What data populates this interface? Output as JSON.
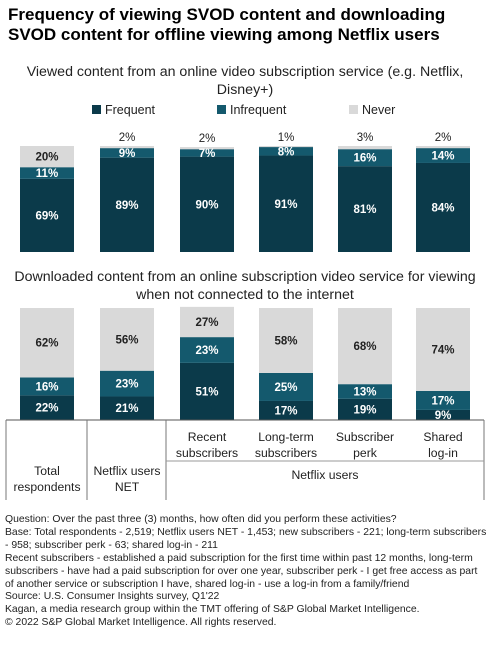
{
  "title": "Frequency of viewing SVOD content and downloading SVOD content for offline viewing among Netflix users",
  "colors": {
    "frequent": "#0b3a4a",
    "infrequent": "#14596d",
    "never": "#d9d9d9"
  },
  "legend": [
    {
      "label": "Frequent",
      "color": "#0b3a4a"
    },
    {
      "label": "Infrequent",
      "color": "#14596d"
    },
    {
      "label": "Never",
      "color": "#d9d9d9"
    }
  ],
  "categories": [
    {
      "lines": [
        "",
        "Total",
        "respondents"
      ]
    },
    {
      "lines": [
        "",
        "Netflix users",
        "NET"
      ]
    },
    {
      "lines": [
        "Recent",
        "subscribers",
        ""
      ]
    },
    {
      "lines": [
        "Long-term",
        "subscribers",
        ""
      ]
    },
    {
      "lines": [
        "Subscriber",
        "perk",
        ""
      ]
    },
    {
      "lines": [
        "Shared",
        "log-in",
        ""
      ]
    }
  ],
  "group_label": "Netflix users",
  "chart_data": [
    {
      "type": "bar",
      "stacked": true,
      "title": "Viewed content from an online video subscription service (e.g. Netflix, Disney+)",
      "categories": [
        "Total respondents",
        "Netflix users NET",
        "Recent subscribers",
        "Long-term subscribers",
        "Subscriber perk",
        "Shared log-in"
      ],
      "series": [
        {
          "name": "Frequent",
          "values": [
            69,
            89,
            90,
            91,
            81,
            84
          ]
        },
        {
          "name": "Infrequent",
          "values": [
            11,
            9,
            7,
            8,
            16,
            14
          ]
        },
        {
          "name": "Never",
          "values": [
            20,
            2,
            2,
            1,
            3,
            2
          ]
        }
      ],
      "labels": {
        "Frequent": [
          "69%",
          "89%",
          "90%",
          "91%",
          "81%",
          "84%"
        ],
        "Infrequent": [
          "11%",
          "9%",
          "7%",
          "8%",
          "16%",
          "14%"
        ],
        "Never": [
          "20%",
          "2%",
          "2%",
          "1%",
          "3%",
          "2%"
        ]
      },
      "legend_position": "top",
      "ylim": [
        0,
        100
      ]
    },
    {
      "type": "bar",
      "stacked": true,
      "title": "Downloaded content from an online subscription video service for viewing when not connected to the internet",
      "categories": [
        "Total respondents",
        "Netflix users NET",
        "Recent subscribers",
        "Long-term subscribers",
        "Subscriber perk",
        "Shared log-in"
      ],
      "series": [
        {
          "name": "Frequent",
          "values": [
            22,
            21,
            51,
            17,
            19,
            9
          ]
        },
        {
          "name": "Infrequent",
          "values": [
            16,
            23,
            23,
            25,
            13,
            17
          ]
        },
        {
          "name": "Never",
          "values": [
            62,
            56,
            27,
            58,
            68,
            74
          ]
        }
      ],
      "labels": {
        "Frequent": [
          "22%",
          "21%",
          "51%",
          "17%",
          "19%",
          "9%"
        ],
        "Infrequent": [
          "16%",
          "23%",
          "23%",
          "25%",
          "13%",
          "17%"
        ],
        "Never": [
          "62%",
          "56%",
          "27%",
          "58%",
          "68%",
          "74%"
        ]
      },
      "ylim": [
        0,
        100
      ]
    }
  ],
  "notes": [
    "Question: Over the past three (3) months, how often did you perform these activities?",
    "Base: Total respondents - 2,519; Netflix users NET - 1,453; new subscribers - 221; long-term subscribers - 958; subscriber perk - 63; shared log-in - 211",
    "Recent subscribers - established a paid subscription for the first time within past 12 months, long-term subscribers - have had a paid subscription for over one year, subscriber perk - I get free access as part of another service or subscription I have, shared log-in - use a log-in from a family/friend",
    "Source: U.S. Consumer Insights survey, Q1'22",
    "Kagan, a media research group within the TMT offering of S&P Global Market Intelligence.",
    "© 2022 S&P Global Market Intelligence. All rights reserved."
  ]
}
